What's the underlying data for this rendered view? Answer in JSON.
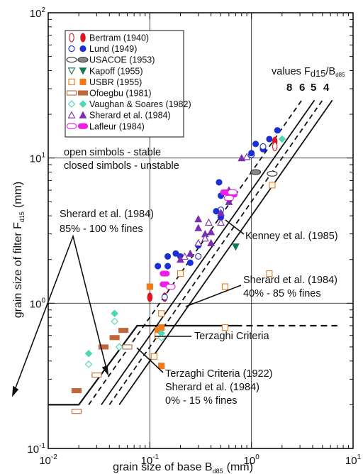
{
  "chart_data": {
    "type": "scatter",
    "x_scale": "log",
    "y_scale": "log",
    "xlim": [
      0.01,
      10
    ],
    "ylim": [
      0.1,
      100
    ],
    "xlabel": "grain size of base B",
    "xlabel_sub": "d85",
    "xlabel_unit": "(mm)",
    "ylabel": "grain size of filter F",
    "ylabel_sub": "d15",
    "ylabel_unit": "(mm)",
    "x_ticks": [
      {
        "value": 0.01,
        "base": "10",
        "exp": "-2"
      },
      {
        "value": 0.1,
        "base": "10",
        "exp": "-1"
      },
      {
        "value": 1,
        "base": "10",
        "exp": "0"
      },
      {
        "value": 10,
        "base": "10",
        "exp": "1"
      }
    ],
    "y_ticks": [
      {
        "value": 0.1,
        "base": "10",
        "exp": "-1"
      },
      {
        "value": 1,
        "base": "10",
        "exp": "0"
      },
      {
        "value": 10,
        "base": "10",
        "exp": "1"
      },
      {
        "value": 100,
        "base": "10",
        "exp": "2"
      }
    ],
    "grid": true,
    "legend_position": "top-left",
    "legend": [
      {
        "label": "Bertram (1940)",
        "shape": "ellipse-v",
        "color": "#e0141e"
      },
      {
        "label": "Lund (1949)",
        "shape": "circle",
        "color": "#1a2fd6"
      },
      {
        "label": "USACOE (1953)",
        "shape": "ellipse-h",
        "color": "#777777"
      },
      {
        "label": "Kapoff (1955)",
        "shape": "triangle-down",
        "color": "#157a55"
      },
      {
        "label": "USBR (1955)",
        "shape": "square",
        "color": "#f07a18"
      },
      {
        "label": "Ofoegbu (1981)",
        "shape": "rect",
        "color": "#c0683a"
      },
      {
        "label": "Vaughan & Soares (1982)",
        "shape": "diamond",
        "color": "#4fd6b4"
      },
      {
        "label": "Sherard et al. (1984)",
        "shape": "triangle-up",
        "color": "#7b2fb3"
      },
      {
        "label": "Lafleur (1984)",
        "shape": "pill",
        "color": "#ee1ee6"
      }
    ],
    "legend_title": "values F",
    "legend_title_sub1": "d15",
    "legend_title_mid": "/B",
    "legend_title_sub2": "d85",
    "ratio_labels": [
      "8",
      "6",
      "5",
      "4"
    ],
    "series": [
      {
        "name": "Bertram (1940)",
        "points": [
          {
            "x": 0.1,
            "y": 1.1,
            "f": 1
          },
          {
            "x": 0.14,
            "y": 1.1,
            "f": 1
          },
          {
            "x": 1.7,
            "y": 13,
            "f": 1
          },
          {
            "x": 1.7,
            "y": 12,
            "f": 0
          }
        ]
      },
      {
        "name": "Lund (1949)",
        "points": [
          {
            "x": 0.1,
            "y": 1.3,
            "f": 1
          },
          {
            "x": 0.12,
            "y": 1.8,
            "f": 1
          },
          {
            "x": 0.15,
            "y": 2.1,
            "f": 1
          },
          {
            "x": 0.15,
            "y": 1.8,
            "f": 1
          },
          {
            "x": 0.18,
            "y": 2.2,
            "f": 1
          },
          {
            "x": 0.2,
            "y": 2.1,
            "f": 1
          },
          {
            "x": 0.25,
            "y": 1.9,
            "f": 1
          },
          {
            "x": 0.3,
            "y": 2.1,
            "f": 0
          },
          {
            "x": 0.3,
            "y": 2.5,
            "f": 1
          },
          {
            "x": 0.48,
            "y": 6.8,
            "f": 1
          },
          {
            "x": 0.5,
            "y": 5.5,
            "f": 1
          },
          {
            "x": 0.6,
            "y": 5.4,
            "f": 1
          },
          {
            "x": 0.5,
            "y": 4.4,
            "f": 0
          },
          {
            "x": 0.5,
            "y": 3.9,
            "f": 1
          },
          {
            "x": 0.14,
            "y": 1.1,
            "f": 0
          },
          {
            "x": 0.45,
            "y": 4.3,
            "f": 1
          },
          {
            "x": 1.0,
            "y": 10.5,
            "f": 0
          },
          {
            "x": 1.0,
            "y": 10.8,
            "f": 1
          },
          {
            "x": 1.1,
            "y": 12.5,
            "f": 1
          },
          {
            "x": 1.3,
            "y": 11.5,
            "f": 1
          },
          {
            "x": 1.5,
            "y": 13.5,
            "f": 1
          },
          {
            "x": 1.8,
            "y": 15.5,
            "f": 1
          },
          {
            "x": 1.3,
            "y": 12,
            "f": 0
          }
        ]
      },
      {
        "name": "USACOE (1953)",
        "points": [
          {
            "x": 1.1,
            "y": 8.0,
            "f": 1
          },
          {
            "x": 1.6,
            "y": 7.8,
            "f": 0
          }
        ]
      },
      {
        "name": "Kapoff (1955)",
        "points": [
          {
            "x": 0.7,
            "y": 2.45,
            "f": 1
          }
        ]
      },
      {
        "name": "USBR (1955)",
        "points": [
          {
            "x": 0.1,
            "y": 1.3,
            "f": 1
          },
          {
            "x": 0.12,
            "y": 0.65,
            "f": 1
          },
          {
            "x": 0.13,
            "y": 0.68,
            "f": 1
          },
          {
            "x": 0.13,
            "y": 0.37,
            "f": 1
          },
          {
            "x": 0.11,
            "y": 0.43,
            "f": 0
          },
          {
            "x": 0.13,
            "y": 0.85,
            "f": 0
          },
          {
            "x": 0.12,
            "y": 0.6,
            "f": 0
          },
          {
            "x": 0.2,
            "y": 1.6,
            "f": 0
          },
          {
            "x": 0.55,
            "y": 1.3,
            "f": 0
          },
          {
            "x": 0.55,
            "y": 0.68,
            "f": 0
          },
          {
            "x": 1.5,
            "y": 1.6,
            "f": 0
          },
          {
            "x": 1.6,
            "y": 6.5,
            "f": 0
          }
        ]
      },
      {
        "name": "Ofoegbu (1981)",
        "points": [
          {
            "x": 0.019,
            "y": 0.25,
            "f": 1
          },
          {
            "x": 0.019,
            "y": 0.18,
            "f": 0
          },
          {
            "x": 0.03,
            "y": 0.32,
            "f": 0
          },
          {
            "x": 0.035,
            "y": 0.5,
            "f": 1
          },
          {
            "x": 0.045,
            "y": 0.58,
            "f": 1
          },
          {
            "x": 0.055,
            "y": 0.65,
            "f": 1
          },
          {
            "x": 0.06,
            "y": 0.5,
            "f": 0
          }
        ]
      },
      {
        "name": "Vaughan & Soares (1982)",
        "points": [
          {
            "x": 0.025,
            "y": 0.38,
            "f": 0
          },
          {
            "x": 0.025,
            "y": 0.45,
            "f": 1
          },
          {
            "x": 0.045,
            "y": 0.85,
            "f": 1
          },
          {
            "x": 0.045,
            "y": 0.75,
            "f": 0
          },
          {
            "x": 0.05,
            "y": 0.5,
            "f": 0
          },
          {
            "x": 0.13,
            "y": 0.62,
            "f": 1
          },
          {
            "x": 0.13,
            "y": 0.58,
            "f": 0
          },
          {
            "x": 2.0,
            "y": 13.5,
            "f": 1
          }
        ]
      },
      {
        "name": "Sherard et al. (1984)",
        "points": [
          {
            "x": 0.2,
            "y": 2.0,
            "f": 1
          },
          {
            "x": 0.22,
            "y": 2.1,
            "f": 0
          },
          {
            "x": 0.25,
            "y": 2.2,
            "f": 1
          },
          {
            "x": 0.3,
            "y": 3.8,
            "f": 1
          },
          {
            "x": 0.3,
            "y": 3.3,
            "f": 1
          },
          {
            "x": 0.35,
            "y": 3.0,
            "f": 1
          },
          {
            "x": 0.4,
            "y": 3.1,
            "f": 1
          },
          {
            "x": 0.4,
            "y": 2.6,
            "f": 1
          },
          {
            "x": 0.38,
            "y": 3.6,
            "f": 0
          },
          {
            "x": 0.35,
            "y": 2.8,
            "f": 0
          },
          {
            "x": 0.5,
            "y": 3.6,
            "f": 0
          },
          {
            "x": 0.5,
            "y": 4.2,
            "f": 1
          },
          {
            "x": 0.6,
            "y": 5.0,
            "f": 1
          },
          {
            "x": 0.6,
            "y": 6.0,
            "f": 1
          },
          {
            "x": 0.8,
            "y": 10,
            "f": 1
          },
          {
            "x": 0.9,
            "y": 10.2,
            "f": 0
          },
          {
            "x": 0.3,
            "y": 2.6,
            "f": 0
          }
        ]
      },
      {
        "name": "Lafleur (1984)",
        "points": [
          {
            "x": 0.14,
            "y": 1.6,
            "f": 1
          },
          {
            "x": 0.14,
            "y": 1.35,
            "f": 1
          },
          {
            "x": 0.16,
            "y": 1.3,
            "f": 0
          },
          {
            "x": 0.55,
            "y": 5.8,
            "f": 1
          },
          {
            "x": 0.65,
            "y": 5.6,
            "f": 1
          },
          {
            "x": 0.6,
            "y": 5.3,
            "f": 0
          },
          {
            "x": 0.65,
            "y": 5.8,
            "f": 0
          }
        ]
      }
    ],
    "ratio_lines": [
      {
        "ratio": 8,
        "dash": true
      },
      {
        "ratio": 6,
        "dash": false
      },
      {
        "ratio": 5,
        "dash": true
      },
      {
        "ratio": 4,
        "dash": false
      }
    ],
    "criteria_line": {
      "solid": [
        [
          0.01,
          0.2
        ],
        [
          0.02,
          0.2
        ],
        [
          0.075,
          0.7
        ],
        [
          0.7,
          0.7
        ]
      ],
      "dashed": [
        [
          0.7,
          0.7
        ],
        [
          7,
          0.7
        ]
      ]
    },
    "annotations": {
      "stability": [
        "open simbols - stable",
        "closed simbols - unstable"
      ],
      "sherard_fines": [
        "Sherard et al. (1984)",
        "85% - 100 % fines"
      ],
      "kenney": "Kenney et al. (1985)",
      "sherard_40": [
        "Sherard et al. (1984)",
        "40% - 85 % fines"
      ],
      "terzaghi": "Terzaghi Criteria",
      "terzaghi_1922": [
        "Terzaghi Criteria (1922)",
        "Sherard et al. (1984)",
        "0% - 15 % fines"
      ]
    }
  }
}
